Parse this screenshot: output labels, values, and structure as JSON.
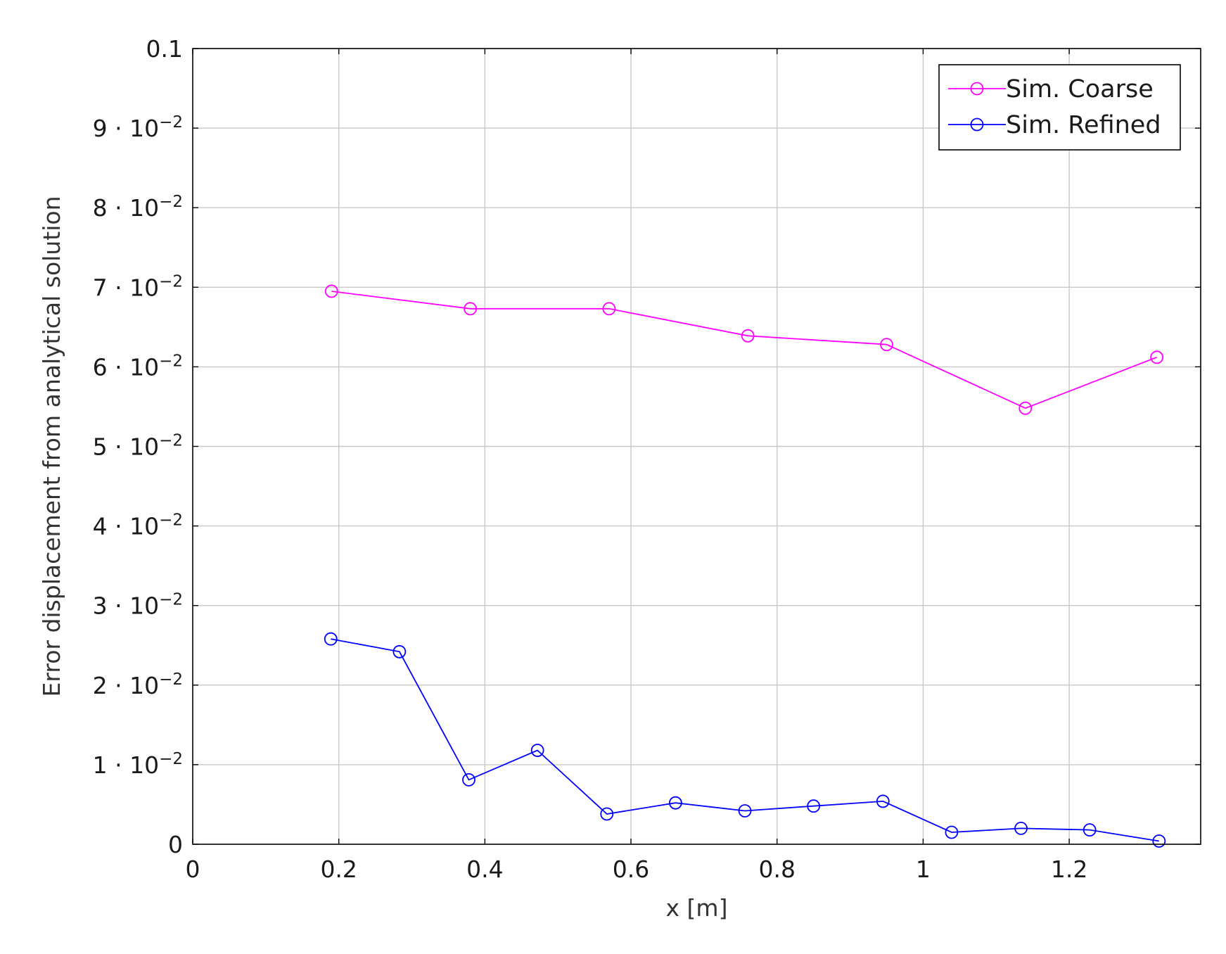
{
  "chart_data": {
    "type": "line",
    "xlabel": "x [m]",
    "ylabel": "Error displacement from analytical solution",
    "xlim": [
      0,
      1.38
    ],
    "ylim": [
      0,
      0.1
    ],
    "grid": true,
    "legend_position": "top-right",
    "x_ticks": [
      0,
      0.2,
      0.4,
      0.6,
      0.8,
      1,
      1.2
    ],
    "x_tick_labels": [
      "0",
      "0.2",
      "0.4",
      "0.6",
      "0.8",
      "1",
      "1.2"
    ],
    "y_ticks": [
      0,
      0.01,
      0.02,
      0.03,
      0.04,
      0.05,
      0.06,
      0.07,
      0.08,
      0.09,
      0.1
    ],
    "y_tick_labels": [
      {
        "mantissa": "0",
        "exponent": ""
      },
      {
        "mantissa": "1 · 10",
        "exponent": "−2"
      },
      {
        "mantissa": "2 · 10",
        "exponent": "−2"
      },
      {
        "mantissa": "3 · 10",
        "exponent": "−2"
      },
      {
        "mantissa": "4 · 10",
        "exponent": "−2"
      },
      {
        "mantissa": "5 · 10",
        "exponent": "−2"
      },
      {
        "mantissa": "6 · 10",
        "exponent": "−2"
      },
      {
        "mantissa": "7 · 10",
        "exponent": "−2"
      },
      {
        "mantissa": "8 · 10",
        "exponent": "−2"
      },
      {
        "mantissa": "9 · 10",
        "exponent": "−2"
      },
      {
        "mantissa": "0.1",
        "exponent": ""
      }
    ],
    "series": [
      {
        "name": "Sim. Coarse",
        "color": "#ff00ff",
        "marker": "circle",
        "x": [
          0.19,
          0.38,
          0.57,
          0.76,
          0.95,
          1.14,
          1.32
        ],
        "y": [
          0.0695,
          0.0673,
          0.0673,
          0.0639,
          0.0628,
          0.0548,
          0.0612
        ]
      },
      {
        "name": "Sim. Refined",
        "color": "#0000ff",
        "marker": "circle",
        "x": [
          0.189,
          0.283,
          0.378,
          0.472,
          0.567,
          0.661,
          0.756,
          0.85,
          0.945,
          1.039,
          1.134,
          1.228,
          1.323
        ],
        "y": [
          0.0258,
          0.0242,
          0.0081,
          0.0118,
          0.0038,
          0.0052,
          0.0042,
          0.0048,
          0.0054,
          0.0015,
          0.002,
          0.0018,
          0.0004
        ]
      }
    ]
  }
}
